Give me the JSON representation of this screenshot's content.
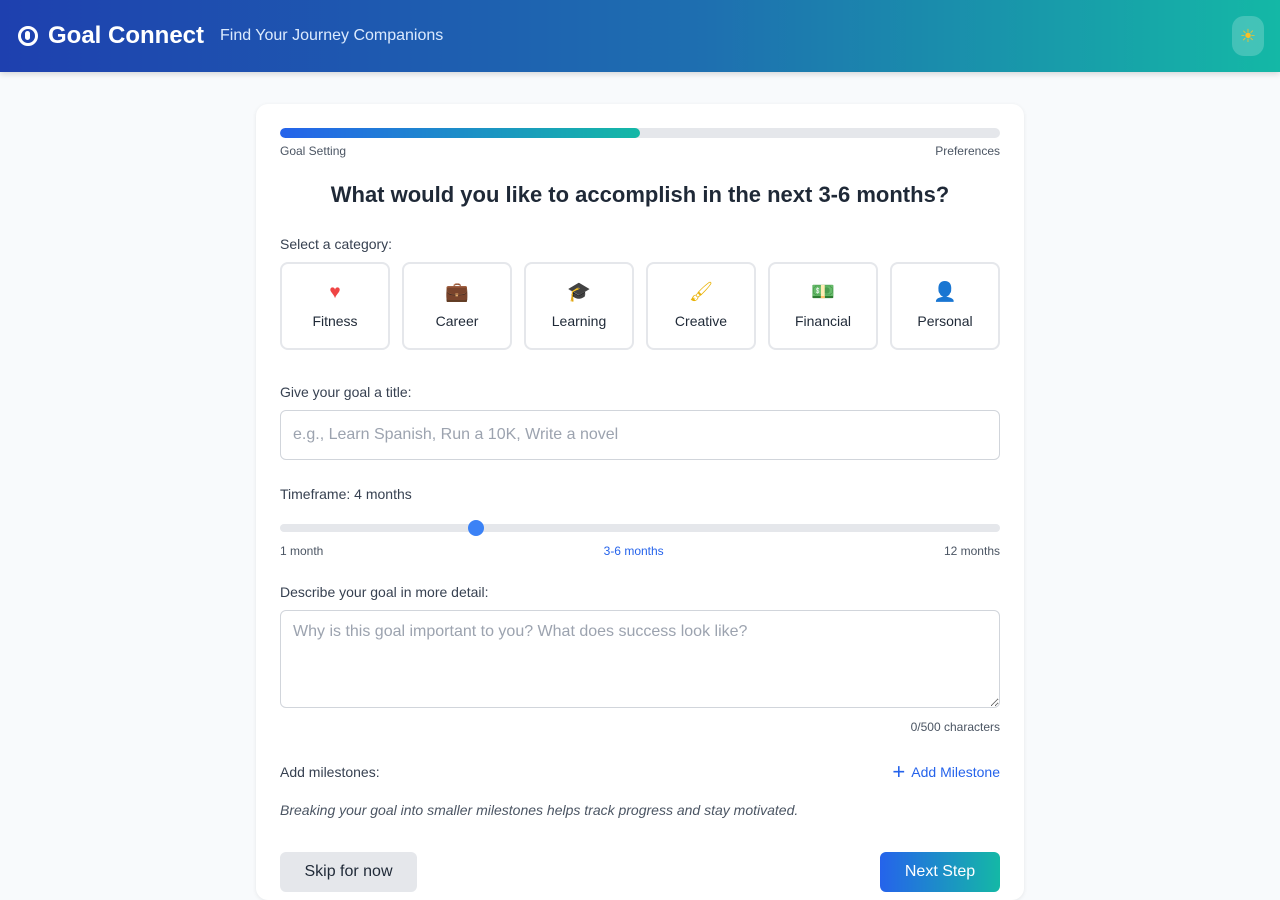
{
  "header": {
    "brand": "Goal Connect",
    "tagline": "Find Your Journey Companions",
    "theme_icon": "☀"
  },
  "progress": {
    "percent": 50,
    "steps": [
      "Goal Setting",
      "Preferences"
    ]
  },
  "title": "What would you like to accomplish in the next 3-6 months?",
  "category": {
    "label": "Select a category:",
    "items": [
      {
        "label": "Fitness",
        "icon": "♥",
        "color": "#ef4444"
      },
      {
        "label": "Career",
        "icon": "💼",
        "color": "#3b82f6"
      },
      {
        "label": "Learning",
        "icon": "🎓",
        "color": "#a855f7"
      },
      {
        "label": "Creative",
        "icon": "🖌",
        "color": "#eab308"
      },
      {
        "label": "Financial",
        "icon": "💵",
        "color": "#22c55e"
      },
      {
        "label": "Personal",
        "icon": "👤",
        "color": "#6366f1"
      }
    ]
  },
  "goal_title": {
    "label": "Give your goal a title:",
    "placeholder": "e.g., Learn Spanish, Run a 10K, Write a novel"
  },
  "timeframe": {
    "label": "Timeframe: 4 months",
    "value": 4,
    "min": 1,
    "max": 12,
    "min_label": "1 month",
    "mid_label": "3-6 months",
    "max_label": "12 months"
  },
  "detail": {
    "label": "Describe your goal in more detail:",
    "placeholder": "Why is this goal important to you? What does success look like?",
    "count": "0/500 characters"
  },
  "milestones": {
    "label": "Add milestones:",
    "add": "Add Milestone",
    "hint": "Breaking your goal into smaller milestones helps track progress and stay motivated."
  },
  "actions": {
    "skip": "Skip for now",
    "next": "Next Step"
  }
}
